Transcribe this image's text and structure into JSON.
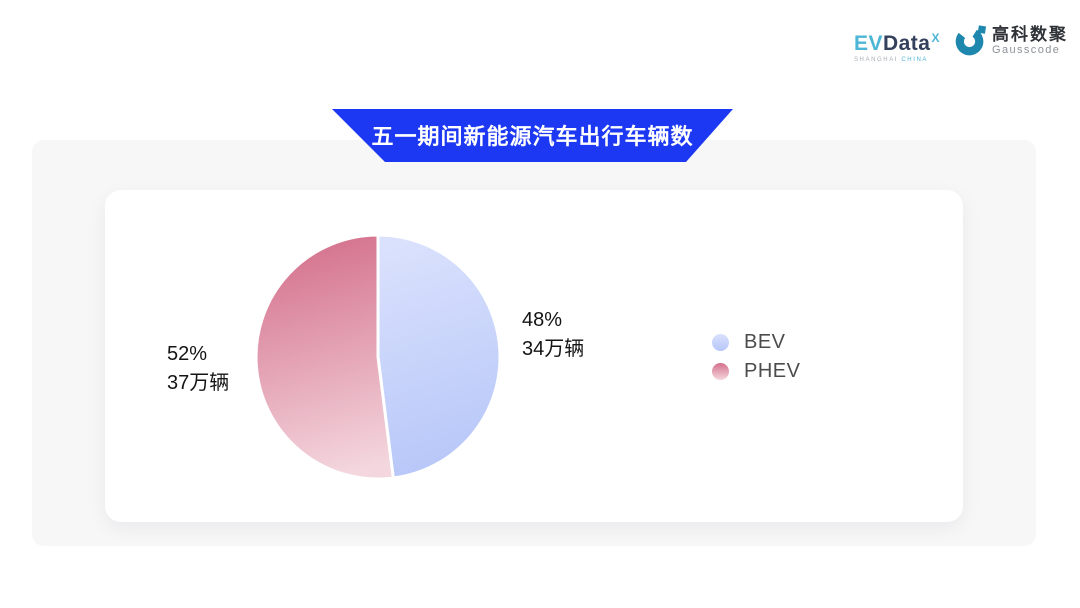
{
  "brand": {
    "evdata": {
      "ev": "EV",
      "data": "Data",
      "sup_mark": "X",
      "tagline_left": "SHANGHAI",
      "tagline_right": "CHINA",
      "ev_color": "#4db5d6",
      "data_color": "#33415c"
    },
    "gausscode": {
      "name_cn": "高科数聚",
      "name_en": "Gausscode",
      "icon_color": "#1d87ad"
    }
  },
  "banner": {
    "title": "五一期间新能源汽车出行车辆数",
    "bg_color": "#1c38f2",
    "text_color": "#ffffff"
  },
  "chart_data": {
    "type": "pie",
    "title": "五一期间新能源汽车出行车辆数",
    "start_angle": "top",
    "direction": "clockwise",
    "legend_position": "right",
    "unit": "万辆",
    "slices": [
      {
        "name": "BEV",
        "percent": 48,
        "value": 34,
        "percent_label": "48%",
        "value_label": "34万辆",
        "color_from": "#dae1fd",
        "color_to": "#b6c6f8"
      },
      {
        "name": "PHEV",
        "percent": 52,
        "value": 37,
        "percent_label": "52%",
        "value_label": "37万辆",
        "color_from": "#d4708c",
        "color_to": "#f4d7de"
      }
    ]
  }
}
